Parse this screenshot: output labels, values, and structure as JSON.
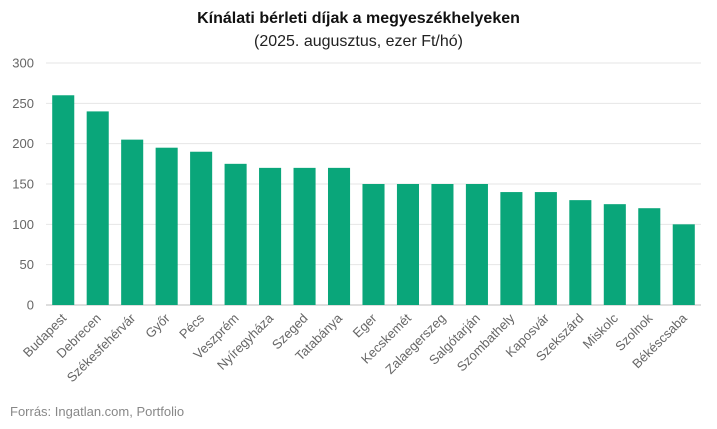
{
  "chart_data": {
    "type": "bar",
    "title": "Kínálati bérleti díjak a megyeszékhelyeken",
    "subtitle": "(2025. augusztus, ezer Ft/hó)",
    "xlabel": "",
    "ylabel": "",
    "ylim": [
      0,
      300
    ],
    "yticks": [
      0,
      50,
      100,
      150,
      200,
      250,
      300
    ],
    "grid": true,
    "legend": "none",
    "bar_color": "#0aa67a",
    "categories": [
      "Budapest",
      "Debrecen",
      "Székesfehérvár",
      "Győr",
      "Pécs",
      "Veszprém",
      "Nyíregyháza",
      "Szeged",
      "Tatabánya",
      "Eger",
      "Kecskemét",
      "Zalaegerszeg",
      "Salgótarján",
      "Szombathely",
      "Kaposvár",
      "Szekszárd",
      "Miskolc",
      "Szolnok",
      "Békéscsaba"
    ],
    "values": [
      260,
      240,
      205,
      195,
      190,
      175,
      170,
      170,
      170,
      150,
      150,
      150,
      150,
      140,
      140,
      130,
      125,
      120,
      100
    ]
  },
  "source": "Forrás: Ingatlan.com, Portfolio"
}
